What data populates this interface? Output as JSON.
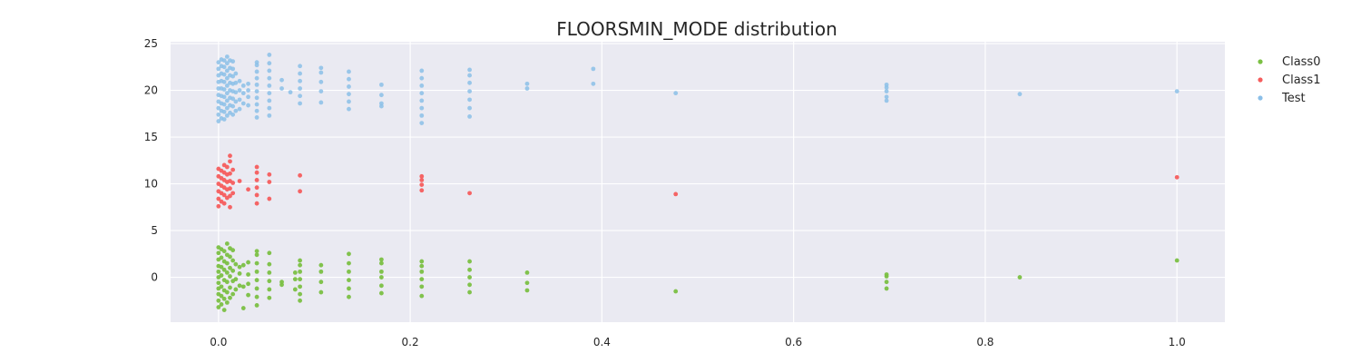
{
  "chart_data": {
    "type": "scatter",
    "title": "FLOORSMIN_MODE distribution",
    "xlabel": "",
    "ylabel": "",
    "xlim": [
      -0.05,
      1.05
    ],
    "ylim": [
      -4.8,
      25.2
    ],
    "x_ticks": [
      0.0,
      0.2,
      0.4,
      0.6,
      0.8,
      1.0
    ],
    "x_tick_labels": [
      "0.0",
      "0.2",
      "0.4",
      "0.6",
      "0.8",
      "1.0"
    ],
    "y_ticks": [
      0,
      5,
      10,
      15,
      20,
      25
    ],
    "y_tick_labels": [
      "0",
      "5",
      "10",
      "15",
      "20",
      "25"
    ],
    "grid": true,
    "legend_position": "outside-right-top",
    "series": [
      {
        "name": "Class0",
        "color": "#7bc043",
        "center": 0,
        "points": [
          [
            0.0,
            -3.2
          ],
          [
            0.0,
            -2.5
          ],
          [
            0.0,
            -1.8
          ],
          [
            0.0,
            -1.2
          ],
          [
            0.0,
            -0.6
          ],
          [
            0.0,
            0.0
          ],
          [
            0.0,
            0.6
          ],
          [
            0.0,
            1.2
          ],
          [
            0.0,
            1.9
          ],
          [
            0.0,
            2.6
          ],
          [
            0.0,
            3.2
          ],
          [
            0.003,
            -2.9
          ],
          [
            0.003,
            -2.0
          ],
          [
            0.003,
            -1.0
          ],
          [
            0.003,
            0.2
          ],
          [
            0.003,
            1.1
          ],
          [
            0.003,
            2.1
          ],
          [
            0.003,
            3.0
          ],
          [
            0.006,
            -3.5
          ],
          [
            0.006,
            -2.3
          ],
          [
            0.006,
            -1.4
          ],
          [
            0.006,
            -0.3
          ],
          [
            0.006,
            0.8
          ],
          [
            0.006,
            1.7
          ],
          [
            0.006,
            2.8
          ],
          [
            0.009,
            -2.7
          ],
          [
            0.009,
            -1.6
          ],
          [
            0.009,
            -0.5
          ],
          [
            0.009,
            0.5
          ],
          [
            0.009,
            1.5
          ],
          [
            0.009,
            2.4
          ],
          [
            0.009,
            3.6
          ],
          [
            0.012,
            -2.2
          ],
          [
            0.012,
            -1.1
          ],
          [
            0.012,
            0.1
          ],
          [
            0.012,
            1.0
          ],
          [
            0.012,
            2.2
          ],
          [
            0.012,
            3.1
          ],
          [
            0.015,
            -1.8
          ],
          [
            0.015,
            -0.4
          ],
          [
            0.015,
            0.7
          ],
          [
            0.015,
            1.8
          ],
          [
            0.015,
            2.9
          ],
          [
            0.018,
            -1.3
          ],
          [
            0.018,
            -0.2
          ],
          [
            0.018,
            1.4
          ],
          [
            0.022,
            -0.9
          ],
          [
            0.022,
            0.4
          ],
          [
            0.022,
            1.1
          ],
          [
            0.026,
            -3.3
          ],
          [
            0.026,
            -1.0
          ],
          [
            0.026,
            1.3
          ],
          [
            0.031,
            -1.9
          ],
          [
            0.031,
            -0.7
          ],
          [
            0.031,
            0.3
          ],
          [
            0.031,
            1.6
          ],
          [
            0.04,
            -3.0
          ],
          [
            0.04,
            -2.1
          ],
          [
            0.04,
            -1.2
          ],
          [
            0.04,
            -0.3
          ],
          [
            0.04,
            0.6
          ],
          [
            0.04,
            1.5
          ],
          [
            0.04,
            2.4
          ],
          [
            0.04,
            2.8
          ],
          [
            0.053,
            -2.2
          ],
          [
            0.053,
            -1.3
          ],
          [
            0.053,
            -0.4
          ],
          [
            0.053,
            0.5
          ],
          [
            0.053,
            1.4
          ],
          [
            0.053,
            2.6
          ],
          [
            0.066,
            -0.8
          ],
          [
            0.066,
            -0.5
          ],
          [
            0.08,
            -1.3
          ],
          [
            0.08,
            -0.2
          ],
          [
            0.08,
            0.5
          ],
          [
            0.085,
            -2.5
          ],
          [
            0.085,
            -1.8
          ],
          [
            0.085,
            -1.0
          ],
          [
            0.085,
            -0.2
          ],
          [
            0.085,
            0.6
          ],
          [
            0.085,
            1.3
          ],
          [
            0.085,
            1.8
          ],
          [
            0.107,
            -1.6
          ],
          [
            0.107,
            -0.5
          ],
          [
            0.107,
            0.6
          ],
          [
            0.107,
            1.3
          ],
          [
            0.136,
            -2.1
          ],
          [
            0.136,
            -1.2
          ],
          [
            0.136,
            -0.3
          ],
          [
            0.136,
            0.6
          ],
          [
            0.136,
            1.5
          ],
          [
            0.136,
            2.5
          ],
          [
            0.17,
            -1.7
          ],
          [
            0.17,
            -0.9
          ],
          [
            0.17,
            0.0
          ],
          [
            0.17,
            0.6
          ],
          [
            0.17,
            1.5
          ],
          [
            0.17,
            1.9
          ],
          [
            0.212,
            -2.0
          ],
          [
            0.212,
            -1.0
          ],
          [
            0.212,
            -0.2
          ],
          [
            0.212,
            0.6
          ],
          [
            0.212,
            1.2
          ],
          [
            0.212,
            1.7
          ],
          [
            0.262,
            -1.6
          ],
          [
            0.262,
            -0.8
          ],
          [
            0.262,
            0.0
          ],
          [
            0.262,
            0.8
          ],
          [
            0.262,
            1.7
          ],
          [
            0.322,
            -1.4
          ],
          [
            0.322,
            -0.6
          ],
          [
            0.322,
            0.5
          ],
          [
            0.477,
            -1.5
          ],
          [
            0.697,
            -1.2
          ],
          [
            0.697,
            -0.5
          ],
          [
            0.697,
            0.1
          ],
          [
            0.697,
            0.3
          ],
          [
            0.836,
            0.0
          ],
          [
            1.0,
            1.8
          ]
        ]
      },
      {
        "name": "Class1",
        "color": "#f55d5d",
        "center": 10,
        "points": [
          [
            0.0,
            7.6
          ],
          [
            0.0,
            8.4
          ],
          [
            0.0,
            9.2
          ],
          [
            0.0,
            10.0
          ],
          [
            0.0,
            10.8
          ],
          [
            0.0,
            11.6
          ],
          [
            0.003,
            8.1
          ],
          [
            0.003,
            9.0
          ],
          [
            0.003,
            9.8
          ],
          [
            0.003,
            10.6
          ],
          [
            0.003,
            11.4
          ],
          [
            0.006,
            7.9
          ],
          [
            0.006,
            8.8
          ],
          [
            0.006,
            9.6
          ],
          [
            0.006,
            10.4
          ],
          [
            0.006,
            11.2
          ],
          [
            0.006,
            12.0
          ],
          [
            0.009,
            8.5
          ],
          [
            0.009,
            9.4
          ],
          [
            0.009,
            10.2
          ],
          [
            0.009,
            11.0
          ],
          [
            0.009,
            11.8
          ],
          [
            0.012,
            7.5
          ],
          [
            0.012,
            8.7
          ],
          [
            0.012,
            9.5
          ],
          [
            0.012,
            10.3
          ],
          [
            0.012,
            11.1
          ],
          [
            0.012,
            12.4
          ],
          [
            0.012,
            13.0
          ],
          [
            0.015,
            9.0
          ],
          [
            0.015,
            10.1
          ],
          [
            0.015,
            11.5
          ],
          [
            0.022,
            10.3
          ],
          [
            0.031,
            9.4
          ],
          [
            0.04,
            7.9
          ],
          [
            0.04,
            8.8
          ],
          [
            0.04,
            9.6
          ],
          [
            0.04,
            10.4
          ],
          [
            0.04,
            11.2
          ],
          [
            0.04,
            11.8
          ],
          [
            0.053,
            8.4
          ],
          [
            0.053,
            10.2
          ],
          [
            0.053,
            11.0
          ],
          [
            0.085,
            9.2
          ],
          [
            0.085,
            10.9
          ],
          [
            0.212,
            9.3
          ],
          [
            0.212,
            9.9
          ],
          [
            0.212,
            10.4
          ],
          [
            0.212,
            10.8
          ],
          [
            0.262,
            9.0
          ],
          [
            0.477,
            8.9
          ],
          [
            1.0,
            10.7
          ]
        ]
      },
      {
        "name": "Test",
        "color": "#8bbfe8",
        "center": 20,
        "points": [
          [
            0.0,
            16.7
          ],
          [
            0.0,
            17.4
          ],
          [
            0.0,
            18.1
          ],
          [
            0.0,
            18.8
          ],
          [
            0.0,
            19.5
          ],
          [
            0.0,
            20.2
          ],
          [
            0.0,
            20.9
          ],
          [
            0.0,
            21.6
          ],
          [
            0.0,
            22.3
          ],
          [
            0.0,
            23.0
          ],
          [
            0.003,
            17.0
          ],
          [
            0.003,
            17.8
          ],
          [
            0.003,
            18.6
          ],
          [
            0.003,
            19.4
          ],
          [
            0.003,
            20.2
          ],
          [
            0.003,
            21.0
          ],
          [
            0.003,
            21.8
          ],
          [
            0.003,
            22.6
          ],
          [
            0.003,
            23.3
          ],
          [
            0.006,
            16.9
          ],
          [
            0.006,
            17.7
          ],
          [
            0.006,
            18.5
          ],
          [
            0.006,
            19.3
          ],
          [
            0.006,
            20.1
          ],
          [
            0.006,
            20.9
          ],
          [
            0.006,
            21.7
          ],
          [
            0.006,
            22.5
          ],
          [
            0.006,
            23.2
          ],
          [
            0.009,
            17.3
          ],
          [
            0.009,
            18.1
          ],
          [
            0.009,
            18.9
          ],
          [
            0.009,
            19.7
          ],
          [
            0.009,
            20.5
          ],
          [
            0.009,
            21.3
          ],
          [
            0.009,
            22.1
          ],
          [
            0.009,
            22.9
          ],
          [
            0.009,
            23.6
          ],
          [
            0.012,
            17.6
          ],
          [
            0.012,
            18.4
          ],
          [
            0.012,
            19.2
          ],
          [
            0.012,
            20.0
          ],
          [
            0.012,
            20.8
          ],
          [
            0.012,
            21.6
          ],
          [
            0.012,
            22.4
          ],
          [
            0.012,
            23.2
          ],
          [
            0.015,
            17.4
          ],
          [
            0.015,
            18.3
          ],
          [
            0.015,
            19.1
          ],
          [
            0.015,
            19.9
          ],
          [
            0.015,
            20.7
          ],
          [
            0.015,
            21.5
          ],
          [
            0.015,
            22.3
          ],
          [
            0.015,
            23.1
          ],
          [
            0.018,
            17.8
          ],
          [
            0.018,
            18.8
          ],
          [
            0.018,
            19.8
          ],
          [
            0.018,
            20.8
          ],
          [
            0.018,
            21.8
          ],
          [
            0.022,
            18.0
          ],
          [
            0.022,
            19.0
          ],
          [
            0.022,
            20.0
          ],
          [
            0.022,
            21.0
          ],
          [
            0.026,
            18.6
          ],
          [
            0.026,
            19.7
          ],
          [
            0.026,
            20.5
          ],
          [
            0.031,
            18.4
          ],
          [
            0.031,
            19.3
          ],
          [
            0.031,
            20.0
          ],
          [
            0.031,
            20.7
          ],
          [
            0.04,
            17.1
          ],
          [
            0.04,
            17.8
          ],
          [
            0.04,
            18.5
          ],
          [
            0.04,
            19.2
          ],
          [
            0.04,
            19.9
          ],
          [
            0.04,
            20.6
          ],
          [
            0.04,
            21.3
          ],
          [
            0.04,
            22.0
          ],
          [
            0.04,
            22.7
          ],
          [
            0.04,
            23.0
          ],
          [
            0.053,
            17.3
          ],
          [
            0.053,
            18.1
          ],
          [
            0.053,
            18.9
          ],
          [
            0.053,
            19.7
          ],
          [
            0.053,
            20.5
          ],
          [
            0.053,
            21.3
          ],
          [
            0.053,
            22.1
          ],
          [
            0.053,
            22.9
          ],
          [
            0.053,
            23.8
          ],
          [
            0.066,
            20.2
          ],
          [
            0.066,
            21.1
          ],
          [
            0.075,
            19.8
          ],
          [
            0.085,
            18.6
          ],
          [
            0.085,
            19.4
          ],
          [
            0.085,
            20.2
          ],
          [
            0.085,
            21.0
          ],
          [
            0.085,
            21.8
          ],
          [
            0.085,
            22.6
          ],
          [
            0.107,
            18.7
          ],
          [
            0.107,
            19.9
          ],
          [
            0.107,
            20.9
          ],
          [
            0.107,
            21.9
          ],
          [
            0.107,
            22.4
          ],
          [
            0.136,
            18.0
          ],
          [
            0.136,
            18.8
          ],
          [
            0.136,
            19.6
          ],
          [
            0.136,
            20.4
          ],
          [
            0.136,
            21.2
          ],
          [
            0.136,
            22.0
          ],
          [
            0.17,
            18.3
          ],
          [
            0.17,
            18.6
          ],
          [
            0.17,
            19.5
          ],
          [
            0.17,
            20.6
          ],
          [
            0.212,
            16.5
          ],
          [
            0.212,
            17.3
          ],
          [
            0.212,
            18.1
          ],
          [
            0.212,
            18.9
          ],
          [
            0.212,
            19.7
          ],
          [
            0.212,
            20.5
          ],
          [
            0.212,
            21.3
          ],
          [
            0.212,
            22.1
          ],
          [
            0.262,
            17.2
          ],
          [
            0.262,
            18.1
          ],
          [
            0.262,
            19.0
          ],
          [
            0.262,
            19.9
          ],
          [
            0.262,
            20.8
          ],
          [
            0.262,
            21.6
          ],
          [
            0.262,
            22.2
          ],
          [
            0.322,
            20.2
          ],
          [
            0.322,
            20.7
          ],
          [
            0.391,
            20.7
          ],
          [
            0.391,
            22.3
          ],
          [
            0.477,
            19.7
          ],
          [
            0.697,
            18.9
          ],
          [
            0.697,
            19.3
          ],
          [
            0.697,
            19.9
          ],
          [
            0.697,
            20.3
          ],
          [
            0.697,
            20.6
          ],
          [
            0.836,
            19.6
          ],
          [
            1.0,
            19.9
          ]
        ]
      }
    ]
  }
}
